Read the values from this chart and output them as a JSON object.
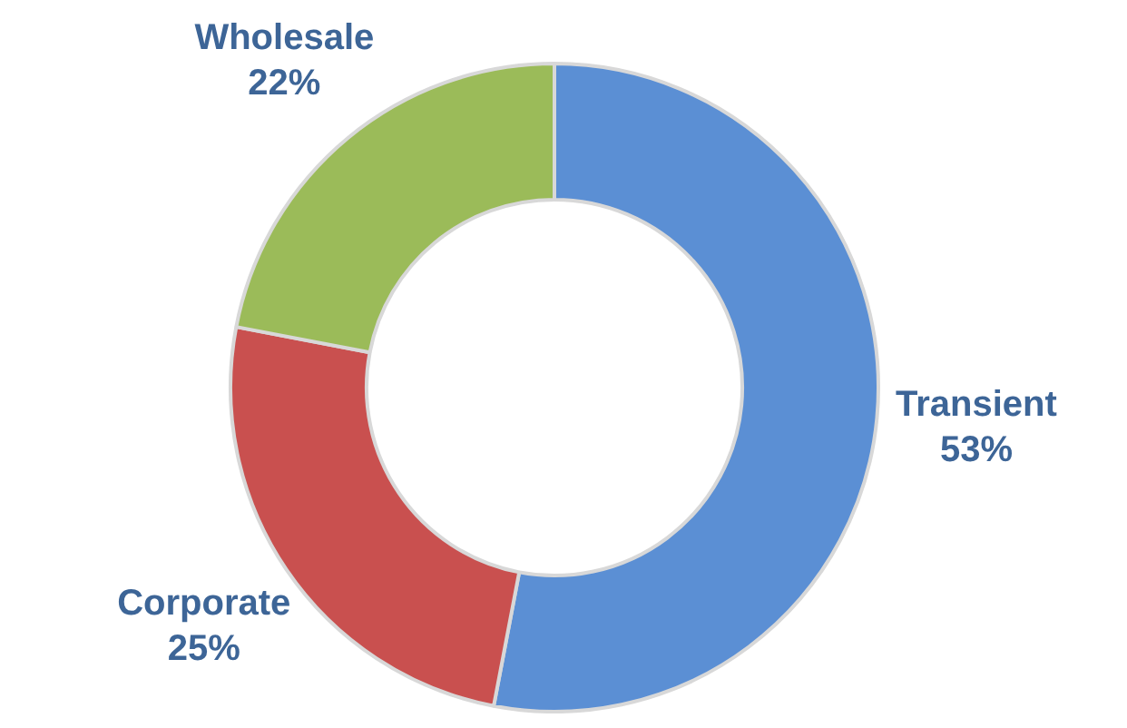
{
  "chart_data": {
    "type": "donut",
    "categories": [
      "Transient",
      "Corporate",
      "Wholesale"
    ],
    "values": [
      53,
      25,
      22
    ],
    "colors": [
      "#5b8fd4",
      "#c9504f",
      "#9bbb59"
    ],
    "value_labels": [
      "53%",
      "25%",
      "22%"
    ],
    "legend": false
  }
}
